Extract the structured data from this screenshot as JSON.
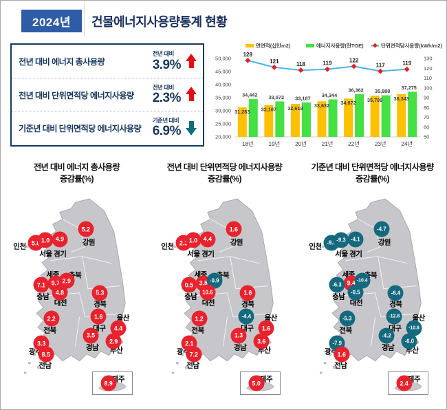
{
  "header": {
    "year_badge": "2024년",
    "title": "건물에너지사용량통계 현황"
  },
  "summary": {
    "items": [
      {
        "label": "전년 대비 에너지 총사용량",
        "compare_label": "전년 대비",
        "value": "3.9%",
        "direction": "up"
      },
      {
        "label": "전년 대비 단위면적당 에너지사용량",
        "compare_label": "전년 대비",
        "value": "2.3%",
        "direction": "up"
      },
      {
        "label": "기준년 대비 단위면적당 에너지사용량",
        "compare_label": "기준년 대비",
        "value": "6.9%",
        "direction": "down"
      }
    ]
  },
  "colors": {
    "accent_blue": "#2e5ca6",
    "navy": "#17375e",
    "up_red": "#e60a14",
    "down_teal": "#0e6e77",
    "bar_yellow": "#ffc000",
    "bar_green": "#44e044",
    "line_blue": "#45b6e6",
    "marker_red": "#e02424",
    "bubble_pos": "#e8232e",
    "bubble_neg": "#15697e",
    "map_gray": "#c7c7cb"
  },
  "chart_data": [
    {
      "type": "bar",
      "subtype": "combo-bar-line",
      "categories": [
        "18년",
        "19년",
        "20년",
        "21년",
        "22년",
        "23년",
        "24년"
      ],
      "series": [
        {
          "name": "연면적(십만m2)",
          "kind": "bar",
          "color": "#ffc000",
          "values": [
            31283,
            32187,
            32619,
            33632,
            34672,
            35789,
            36343
          ]
        },
        {
          "name": "에너지사용량(천TOE)",
          "kind": "bar",
          "color": "#44e044",
          "values": [
            34442,
            33572,
            33187,
            34344,
            36362,
            35888,
            37275
          ]
        },
        {
          "name": "단위면적당사용량(kWh/m2)",
          "kind": "line",
          "color": "#45b6e6",
          "marker_color": "#e02424",
          "values": [
            128,
            121,
            118,
            119,
            122,
            117,
            119
          ],
          "axis": "right"
        }
      ],
      "left_axis": {
        "min": 20000,
        "max": 50000,
        "step": 5000
      },
      "right_axis": {
        "min": 50,
        "max": 130,
        "step": 10
      },
      "legend_position": "top",
      "grid": false,
      "title": "",
      "xlabel": "",
      "ylabel": ""
    },
    {
      "type": "map-bubbles",
      "titles": [
        {
          "line1": "전년 대비 에너지 총사용량",
          "line2": "증감률(%)"
        },
        {
          "line1": "전년 대비 단위면적당 에너지사용량",
          "line2": "증감률(%)"
        },
        {
          "line1": "기준년 대비 단위면적당 에너지사용량",
          "line2": "증감률(%)"
        }
      ],
      "regions": [
        {
          "name": "인천",
          "values": [
            5.8,
            2.3,
            -9.9
          ]
        },
        {
          "name": "서울",
          "values": [
            1.0,
            1.0,
            -9.3
          ]
        },
        {
          "name": "경기",
          "values": [
            4.9,
            4.4,
            -4.1
          ]
        },
        {
          "name": "강원",
          "values": [
            5.2,
            1.6,
            -4.7
          ]
        },
        {
          "name": "세종",
          "values": [
            9.7,
            3.8,
            9.4
          ]
        },
        {
          "name": "충북",
          "values": [
            2.9,
            -0.9,
            -10.4
          ]
        },
        {
          "name": "충남",
          "values": [
            7.1,
            0.5,
            -6.3
          ]
        },
        {
          "name": "대전",
          "values": [
            4.8,
            10.6,
            -0.5
          ]
        },
        {
          "name": "경북",
          "values": [
            5.3,
            1.6,
            -6.4
          ]
        },
        {
          "name": "전북",
          "values": [
            2.2,
            1.2,
            -5.3
          ]
        },
        {
          "name": "대구",
          "values": [
            1.6,
            -4.4,
            -12.8
          ]
        },
        {
          "name": "울산",
          "values": [
            4.4,
            1.6,
            -10.6
          ]
        },
        {
          "name": "경남",
          "values": [
            3.5,
            1.3,
            -4.2
          ]
        },
        {
          "name": "부산",
          "values": [
            2.9,
            3.6,
            -6.0
          ]
        },
        {
          "name": "광주",
          "values": [
            3.3,
            2.1,
            -7.9
          ]
        },
        {
          "name": "전남",
          "values": [
            8.5,
            7.2,
            1.6
          ]
        },
        {
          "name": "제주",
          "values": [
            8.9,
            5.0,
            2.4
          ]
        }
      ]
    }
  ]
}
